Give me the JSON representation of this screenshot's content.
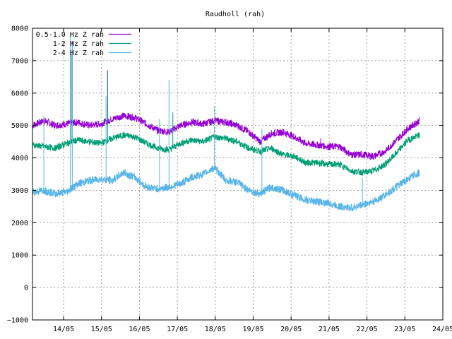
{
  "chart_data": {
    "type": "line",
    "title": "Raudholl (rah)",
    "xlabel": "",
    "ylabel": "",
    "ylim": [
      -1000,
      8000
    ],
    "yticks": [
      -1000,
      0,
      1000,
      2000,
      3000,
      4000,
      5000,
      6000,
      7000,
      8000
    ],
    "xlim": [
      0,
      10.82
    ],
    "x_unit": "days from the first visible tick-aligned midnight offset; tick labels are dates",
    "xticks": [
      {
        "x": 0.82,
        "label": "14/05"
      },
      {
        "x": 1.82,
        "label": "15/05"
      },
      {
        "x": 2.82,
        "label": "16/05"
      },
      {
        "x": 3.82,
        "label": "17/05"
      },
      {
        "x": 4.82,
        "label": "18/05"
      },
      {
        "x": 5.82,
        "label": "19/05"
      },
      {
        "x": 6.82,
        "label": "20/05"
      },
      {
        "x": 7.82,
        "label": "21/05"
      },
      {
        "x": 8.82,
        "label": "22/05"
      },
      {
        "x": 9.82,
        "label": "23/05"
      },
      {
        "x": 10.82,
        "label": "24/05"
      }
    ],
    "grid": true,
    "legend_position": "top-left",
    "series": [
      {
        "name": "0.5-1.0 Hz Z rah",
        "color": "#9400d3",
        "x": [
          0.0,
          0.3,
          0.6,
          0.9,
          1.2,
          1.5,
          1.8,
          2.1,
          2.4,
          2.7,
          3.0,
          3.3,
          3.6,
          3.9,
          4.2,
          4.5,
          4.8,
          5.1,
          5.4,
          5.7,
          6.0,
          6.3,
          6.6,
          6.9,
          7.2,
          7.5,
          7.8,
          8.1,
          8.4,
          8.7,
          9.0,
          9.3,
          9.6,
          9.9,
          10.2
        ],
        "values": [
          5000,
          5150,
          5000,
          5050,
          5100,
          5000,
          5050,
          5200,
          5300,
          5250,
          5050,
          4850,
          4800,
          5000,
          5100,
          5050,
          5150,
          5100,
          5000,
          4800,
          4500,
          4750,
          4800,
          4650,
          4450,
          4400,
          4350,
          4350,
          4100,
          4100,
          4050,
          4200,
          4550,
          4900,
          5150
        ],
        "spikes": [
          {
            "x": 1.05,
            "y": 7600
          },
          {
            "x": 1.98,
            "y": 6700
          },
          {
            "x": 7.6,
            "y": 4600
          }
        ]
      },
      {
        "name": "1-2 Hz Z rah",
        "color": "#009e73",
        "x": [
          0.0,
          0.3,
          0.6,
          0.9,
          1.2,
          1.5,
          1.8,
          2.1,
          2.4,
          2.7,
          3.0,
          3.3,
          3.6,
          3.9,
          4.2,
          4.5,
          4.8,
          5.1,
          5.4,
          5.7,
          6.0,
          6.3,
          6.6,
          6.9,
          7.2,
          7.5,
          7.8,
          8.1,
          8.4,
          8.7,
          9.0,
          9.3,
          9.6,
          9.9,
          10.2
        ],
        "values": [
          4400,
          4350,
          4300,
          4450,
          4550,
          4500,
          4450,
          4600,
          4700,
          4650,
          4450,
          4300,
          4250,
          4450,
          4550,
          4500,
          4650,
          4600,
          4500,
          4300,
          4200,
          4300,
          4100,
          4050,
          3850,
          3850,
          3800,
          3800,
          3600,
          3550,
          3600,
          3800,
          4150,
          4550,
          4700
        ],
        "spikes": [
          {
            "x": 1.02,
            "y": 7200
          },
          {
            "x": 1.98,
            "y": 6600
          },
          {
            "x": 3.7,
            "y": 5400
          }
        ]
      },
      {
        "name": "2-4 Hz Z rah",
        "color": "#56b4e9",
        "x": [
          0.0,
          0.3,
          0.6,
          0.9,
          1.2,
          1.5,
          1.8,
          2.1,
          2.4,
          2.7,
          3.0,
          3.3,
          3.6,
          3.9,
          4.2,
          4.5,
          4.8,
          5.1,
          5.4,
          5.7,
          6.0,
          6.3,
          6.6,
          6.9,
          7.2,
          7.5,
          7.8,
          8.1,
          8.4,
          8.7,
          9.0,
          9.3,
          9.6,
          9.9,
          10.2
        ],
        "values": [
          2950,
          3000,
          2900,
          2950,
          3200,
          3300,
          3350,
          3300,
          3550,
          3400,
          3100,
          3050,
          3100,
          3200,
          3400,
          3500,
          3700,
          3300,
          3250,
          3000,
          2900,
          3100,
          3000,
          2850,
          2700,
          2650,
          2600,
          2500,
          2450,
          2550,
          2650,
          2850,
          3100,
          3350,
          3550
        ],
        "spikes": [
          {
            "x": 1.0,
            "y": 7800
          },
          {
            "x": 1.05,
            "y": 7500
          },
          {
            "x": 0.3,
            "y": 5300
          },
          {
            "x": 1.94,
            "y": 5900
          },
          {
            "x": 3.6,
            "y": 6400
          },
          {
            "x": 3.35,
            "y": 5200
          },
          {
            "x": 4.8,
            "y": 5600
          },
          {
            "x": 6.05,
            "y": 4900
          },
          {
            "x": 8.7,
            "y": 3400
          }
        ]
      }
    ]
  }
}
